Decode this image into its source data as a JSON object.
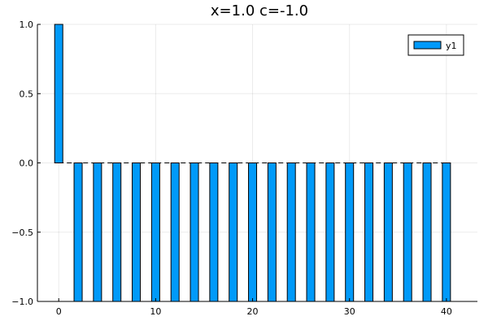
{
  "chart_data": {
    "type": "bar",
    "title": "x=1.0 c=-1.0",
    "xlabel": "",
    "ylabel": "",
    "x": [
      0,
      2,
      4,
      6,
      8,
      10,
      12,
      14,
      16,
      18,
      20,
      22,
      24,
      26,
      28,
      30,
      32,
      34,
      36,
      38,
      40
    ],
    "series": [
      {
        "name": "y1",
        "color": "#009af9",
        "values": [
          1.0,
          -1.0,
          -1.0,
          -1.0,
          -1.0,
          -1.0,
          -1.0,
          -1.0,
          -1.0,
          -1.0,
          -1.0,
          -1.0,
          -1.0,
          -1.0,
          -1.0,
          -1.0,
          -1.0,
          -1.0,
          -1.0,
          -1.0,
          -1.0
        ]
      }
    ],
    "xlim": [
      -2.2,
      43.2
    ],
    "ylim": [
      -1.0,
      1.0
    ],
    "xticks": [
      0,
      10,
      20,
      30,
      40
    ],
    "xtick_labels": [
      "0",
      "10",
      "20",
      "30",
      "40"
    ],
    "yticks": [
      -1.0,
      -0.5,
      0.0,
      0.5,
      1.0
    ],
    "ytick_labels": [
      "−1.0",
      "−0.5",
      "0.0",
      "0.5",
      "1.0"
    ],
    "grid": true,
    "legend": "top-right",
    "zero_line": "dashed"
  }
}
